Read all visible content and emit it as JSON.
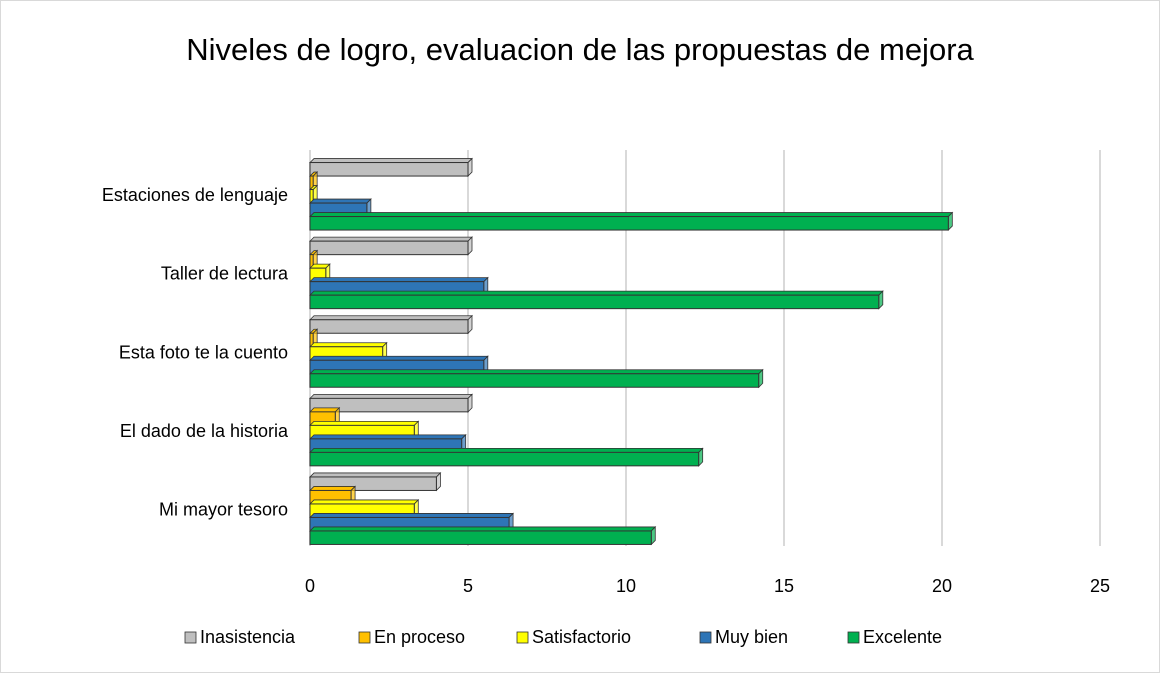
{
  "chart_data": {
    "type": "hbar",
    "title": "Niveles de logro, evaluacion de las propuestas de mejora",
    "categories": [
      "Estaciones de lenguaje",
      "Taller de lectura",
      "Esta foto te la cuento",
      "El dado de la historia",
      "Mi mayor tesoro"
    ],
    "series": [
      {
        "name": "Inasistencia",
        "color": "#bfbfbf",
        "values": [
          5,
          5,
          5,
          5,
          4
        ]
      },
      {
        "name": "En proceso",
        "color": "#ffc000",
        "values": [
          0.1,
          0.1,
          0.1,
          0.8,
          1.3
        ]
      },
      {
        "name": "Satisfactorio",
        "color": "#ffff00",
        "values": [
          0.1,
          0.5,
          2.3,
          3.3,
          3.3
        ]
      },
      {
        "name": "Muy bien",
        "color": "#2e75b6",
        "values": [
          1.8,
          5.5,
          5.5,
          4.8,
          6.3
        ]
      },
      {
        "name": "Excelente",
        "color": "#00b050",
        "values": [
          20.2,
          18,
          14.2,
          12.3,
          10.8
        ]
      }
    ],
    "xlim": [
      0,
      25
    ],
    "xticks": [
      0,
      5,
      10,
      15,
      20,
      25
    ],
    "grid": true,
    "legend": "bottom"
  }
}
